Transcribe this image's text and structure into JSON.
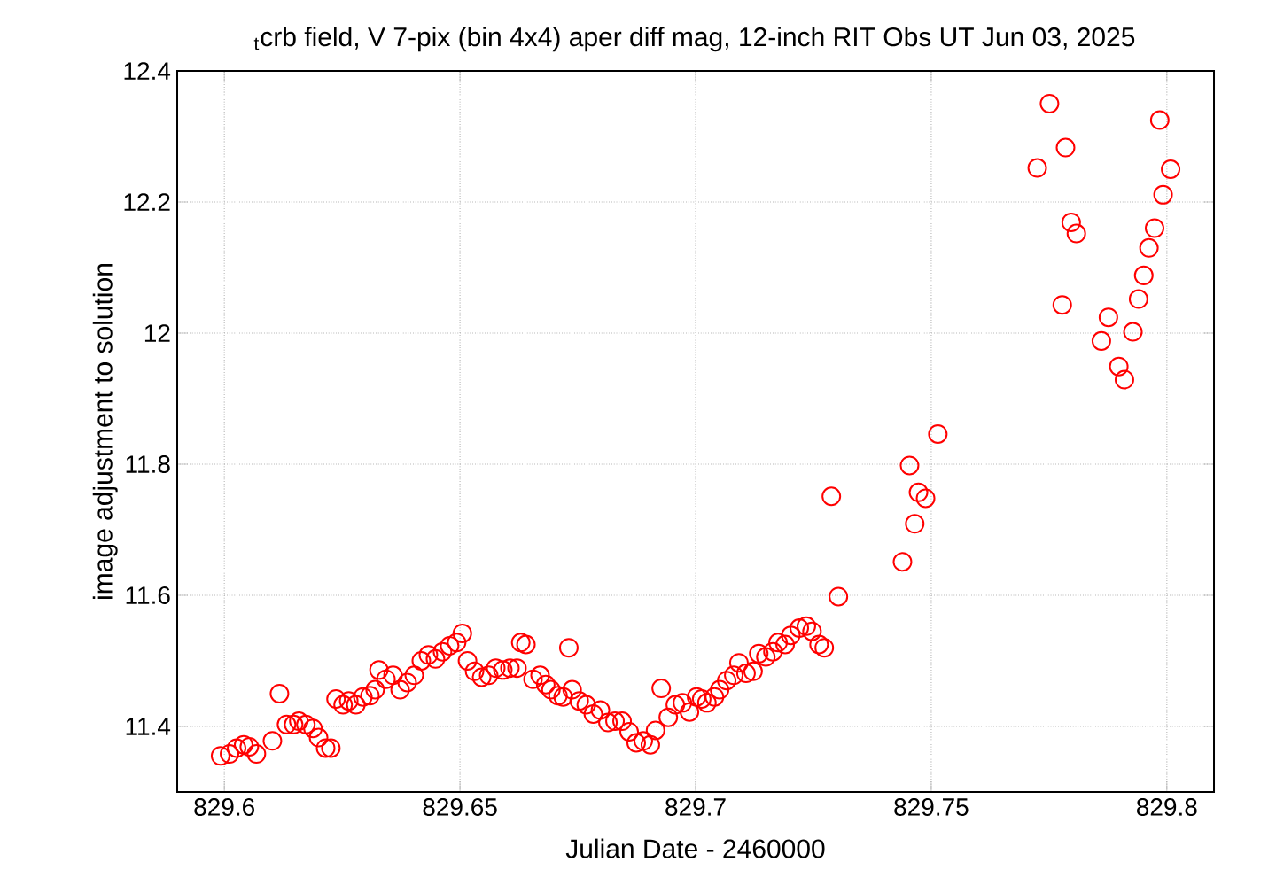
{
  "chart_data": {
    "type": "scatter",
    "title": "$_{t}$crb field, V 7-pix (bin 4x4) aper diff mag,  12-inch RIT Obs UT Jun 03, 2025",
    "xlabel": "Julian Date - 2460000",
    "ylabel": "image adjustment to solution",
    "color": "#ff0000",
    "marker": "circle",
    "grid": true,
    "xlim": [
      829.59,
      829.81
    ],
    "ylim": [
      11.3,
      12.4
    ],
    "xticks": [
      829.6,
      829.65,
      829.7,
      829.75,
      829.8
    ],
    "yticks": [
      11.4,
      11.6,
      11.8,
      12,
      12.2,
      12.4
    ],
    "x": [
      829.5992,
      829.6011,
      829.6026,
      829.6041,
      829.6053,
      829.6068,
      829.6102,
      829.6117,
      829.6132,
      829.6147,
      829.6158,
      829.6173,
      829.6188,
      829.62,
      829.6215,
      829.6226,
      829.6237,
      829.6252,
      829.6264,
      829.6279,
      829.6294,
      829.6309,
      829.632,
      829.6328,
      829.6343,
      829.6358,
      829.6373,
      829.6388,
      829.6403,
      829.6418,
      829.6433,
      829.6448,
      829.6463,
      829.6478,
      829.6493,
      829.6505,
      829.6516,
      829.6531,
      829.6546,
      829.6561,
      829.6576,
      829.6591,
      829.6606,
      829.6621,
      829.6629,
      829.664,
      829.6655,
      829.667,
      829.6682,
      829.6693,
      829.6708,
      829.6719,
      829.6731,
      829.6738,
      829.6753,
      829.6768,
      829.6783,
      829.6798,
      829.6814,
      829.6829,
      829.6844,
      829.6859,
      829.6874,
      829.6889,
      829.6904,
      829.6915,
      829.6927,
      829.6942,
      829.6957,
      829.6972,
      829.6987,
      829.7002,
      829.7013,
      829.7024,
      829.704,
      829.7051,
      829.7066,
      829.7081,
      829.7092,
      829.7107,
      829.7122,
      829.7134,
      829.7149,
      829.7164,
      829.7175,
      829.719,
      829.7202,
      829.722,
      829.7235,
      829.7247,
      829.7262,
      829.7273,
      829.7288,
      829.7303,
      829.7439,
      829.7454,
      829.7465,
      829.7473,
      829.7488,
      829.7514,
      829.7725,
      829.7751,
      829.7778,
      829.7785,
      829.7797,
      829.7808,
      829.7861,
      829.7876,
      829.7898,
      829.791,
      829.7928,
      829.794,
      829.7951,
      829.7962,
      829.7974,
      829.7985,
      829.7992,
      829.8008
    ],
    "values": [
      11.355,
      11.358,
      11.367,
      11.372,
      11.369,
      11.358,
      11.378,
      11.45,
      11.403,
      11.403,
      11.408,
      11.403,
      11.397,
      11.383,
      11.367,
      11.367,
      11.442,
      11.433,
      11.439,
      11.433,
      11.445,
      11.447,
      11.456,
      11.486,
      11.472,
      11.478,
      11.456,
      11.467,
      11.478,
      11.5,
      11.509,
      11.503,
      11.514,
      11.523,
      11.528,
      11.542,
      11.5,
      11.484,
      11.475,
      11.478,
      11.489,
      11.486,
      11.489,
      11.489,
      11.528,
      11.525,
      11.472,
      11.478,
      11.464,
      11.456,
      11.447,
      11.445,
      11.52,
      11.456,
      11.439,
      11.433,
      11.419,
      11.425,
      11.406,
      11.408,
      11.408,
      11.392,
      11.375,
      11.378,
      11.372,
      11.394,
      11.458,
      11.414,
      11.433,
      11.436,
      11.422,
      11.445,
      11.442,
      11.436,
      11.445,
      11.456,
      11.47,
      11.478,
      11.497,
      11.481,
      11.484,
      11.511,
      11.506,
      11.514,
      11.528,
      11.525,
      11.539,
      11.55,
      11.553,
      11.545,
      11.525,
      11.52,
      11.751,
      11.598,
      11.651,
      11.798,
      11.709,
      11.757,
      11.748,
      11.846,
      12.252,
      12.35,
      12.043,
      12.283,
      12.169,
      12.152,
      11.988,
      12.024,
      11.949,
      11.929,
      12.002,
      12.052,
      12.088,
      12.13,
      12.16,
      12.325,
      12.211,
      12.25
    ]
  }
}
